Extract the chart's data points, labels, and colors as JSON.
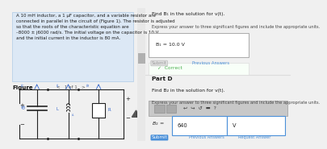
{
  "bg_color": "#f0f0f0",
  "right_bg": "#ffffff",
  "left_bg": "#ffffff",
  "problem_box_bg": "#dce8f5",
  "problem_box_border": "#b8d0e8",
  "problem_text": "A 10 mH inductor, a 1 μF capacitor, and a variable resistor are\nconnected in parallel in the circuit of (Figure 1). The resistor is adjusted\nso that the roots of the characteristic equation are\n–8000 ± j6000 rad/s. The initial voltage on the capacitor is 10 V\nand the initial current in the inductor is 80 mA.",
  "figure_label": "Figure",
  "page_indicator": "<   1 of 1   >",
  "part_c_header": "Find B₁ in the solution for v(t).",
  "part_c_instruction": "Express your answer to three significant figures and include the appropriate units.",
  "part_c_answer": "B₁ = 10.0 V",
  "part_c_submit": "Submit",
  "part_c_prev": "Previous Answers",
  "part_c_correct": "✓  Correct",
  "part_d_header": "Part D",
  "part_d_find": "Find B₂ in the solution for v(t).",
  "part_d_instruction": "Express your answer to three significant figures and include the appropriate units.",
  "part_d_value": "640",
  "part_d_unit": "V",
  "submit_btn": "Submit",
  "prev_ans": "Previous Answers",
  "req_ans": "Request Answer",
  "divider_color": "#dddddd",
  "answer_box_color": "#ffffff",
  "answer_border": "#aaaaaa",
  "correct_color": "#4CAF50",
  "submit_color": "#4a90d9",
  "toolbar_bg": "#c8c8c8",
  "scrollbar_bg": "#e8e8e8",
  "scrollbar_thumb": "#b0b0b0",
  "circuit_color": "#3366cc",
  "circuit_wire": "#222222"
}
